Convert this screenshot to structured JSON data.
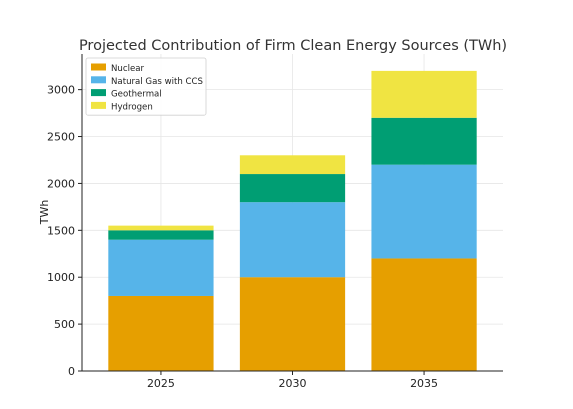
{
  "chart_data": {
    "type": "bar",
    "stacked": true,
    "title": "Projected Contribution of Firm Clean Energy Sources (TWh)",
    "xlabel": "",
    "ylabel": "TWh",
    "categories": [
      "2025",
      "2030",
      "2035"
    ],
    "ylim": [
      0,
      3380
    ],
    "yticks": [
      0,
      500,
      1000,
      1500,
      2000,
      2500,
      3000
    ],
    "grid": true,
    "legend_position": "top-left",
    "series": [
      {
        "name": "Nuclear",
        "color": "#E69F00",
        "values": [
          800,
          1000,
          1200
        ]
      },
      {
        "name": "Natural Gas with CCS",
        "color": "#56B4E9",
        "values": [
          600,
          800,
          1000
        ]
      },
      {
        "name": "Geothermal",
        "color": "#009E73",
        "values": [
          100,
          300,
          500
        ]
      },
      {
        "name": "Hydrogen",
        "color": "#F0E442",
        "values": [
          50,
          200,
          500
        ]
      }
    ]
  }
}
